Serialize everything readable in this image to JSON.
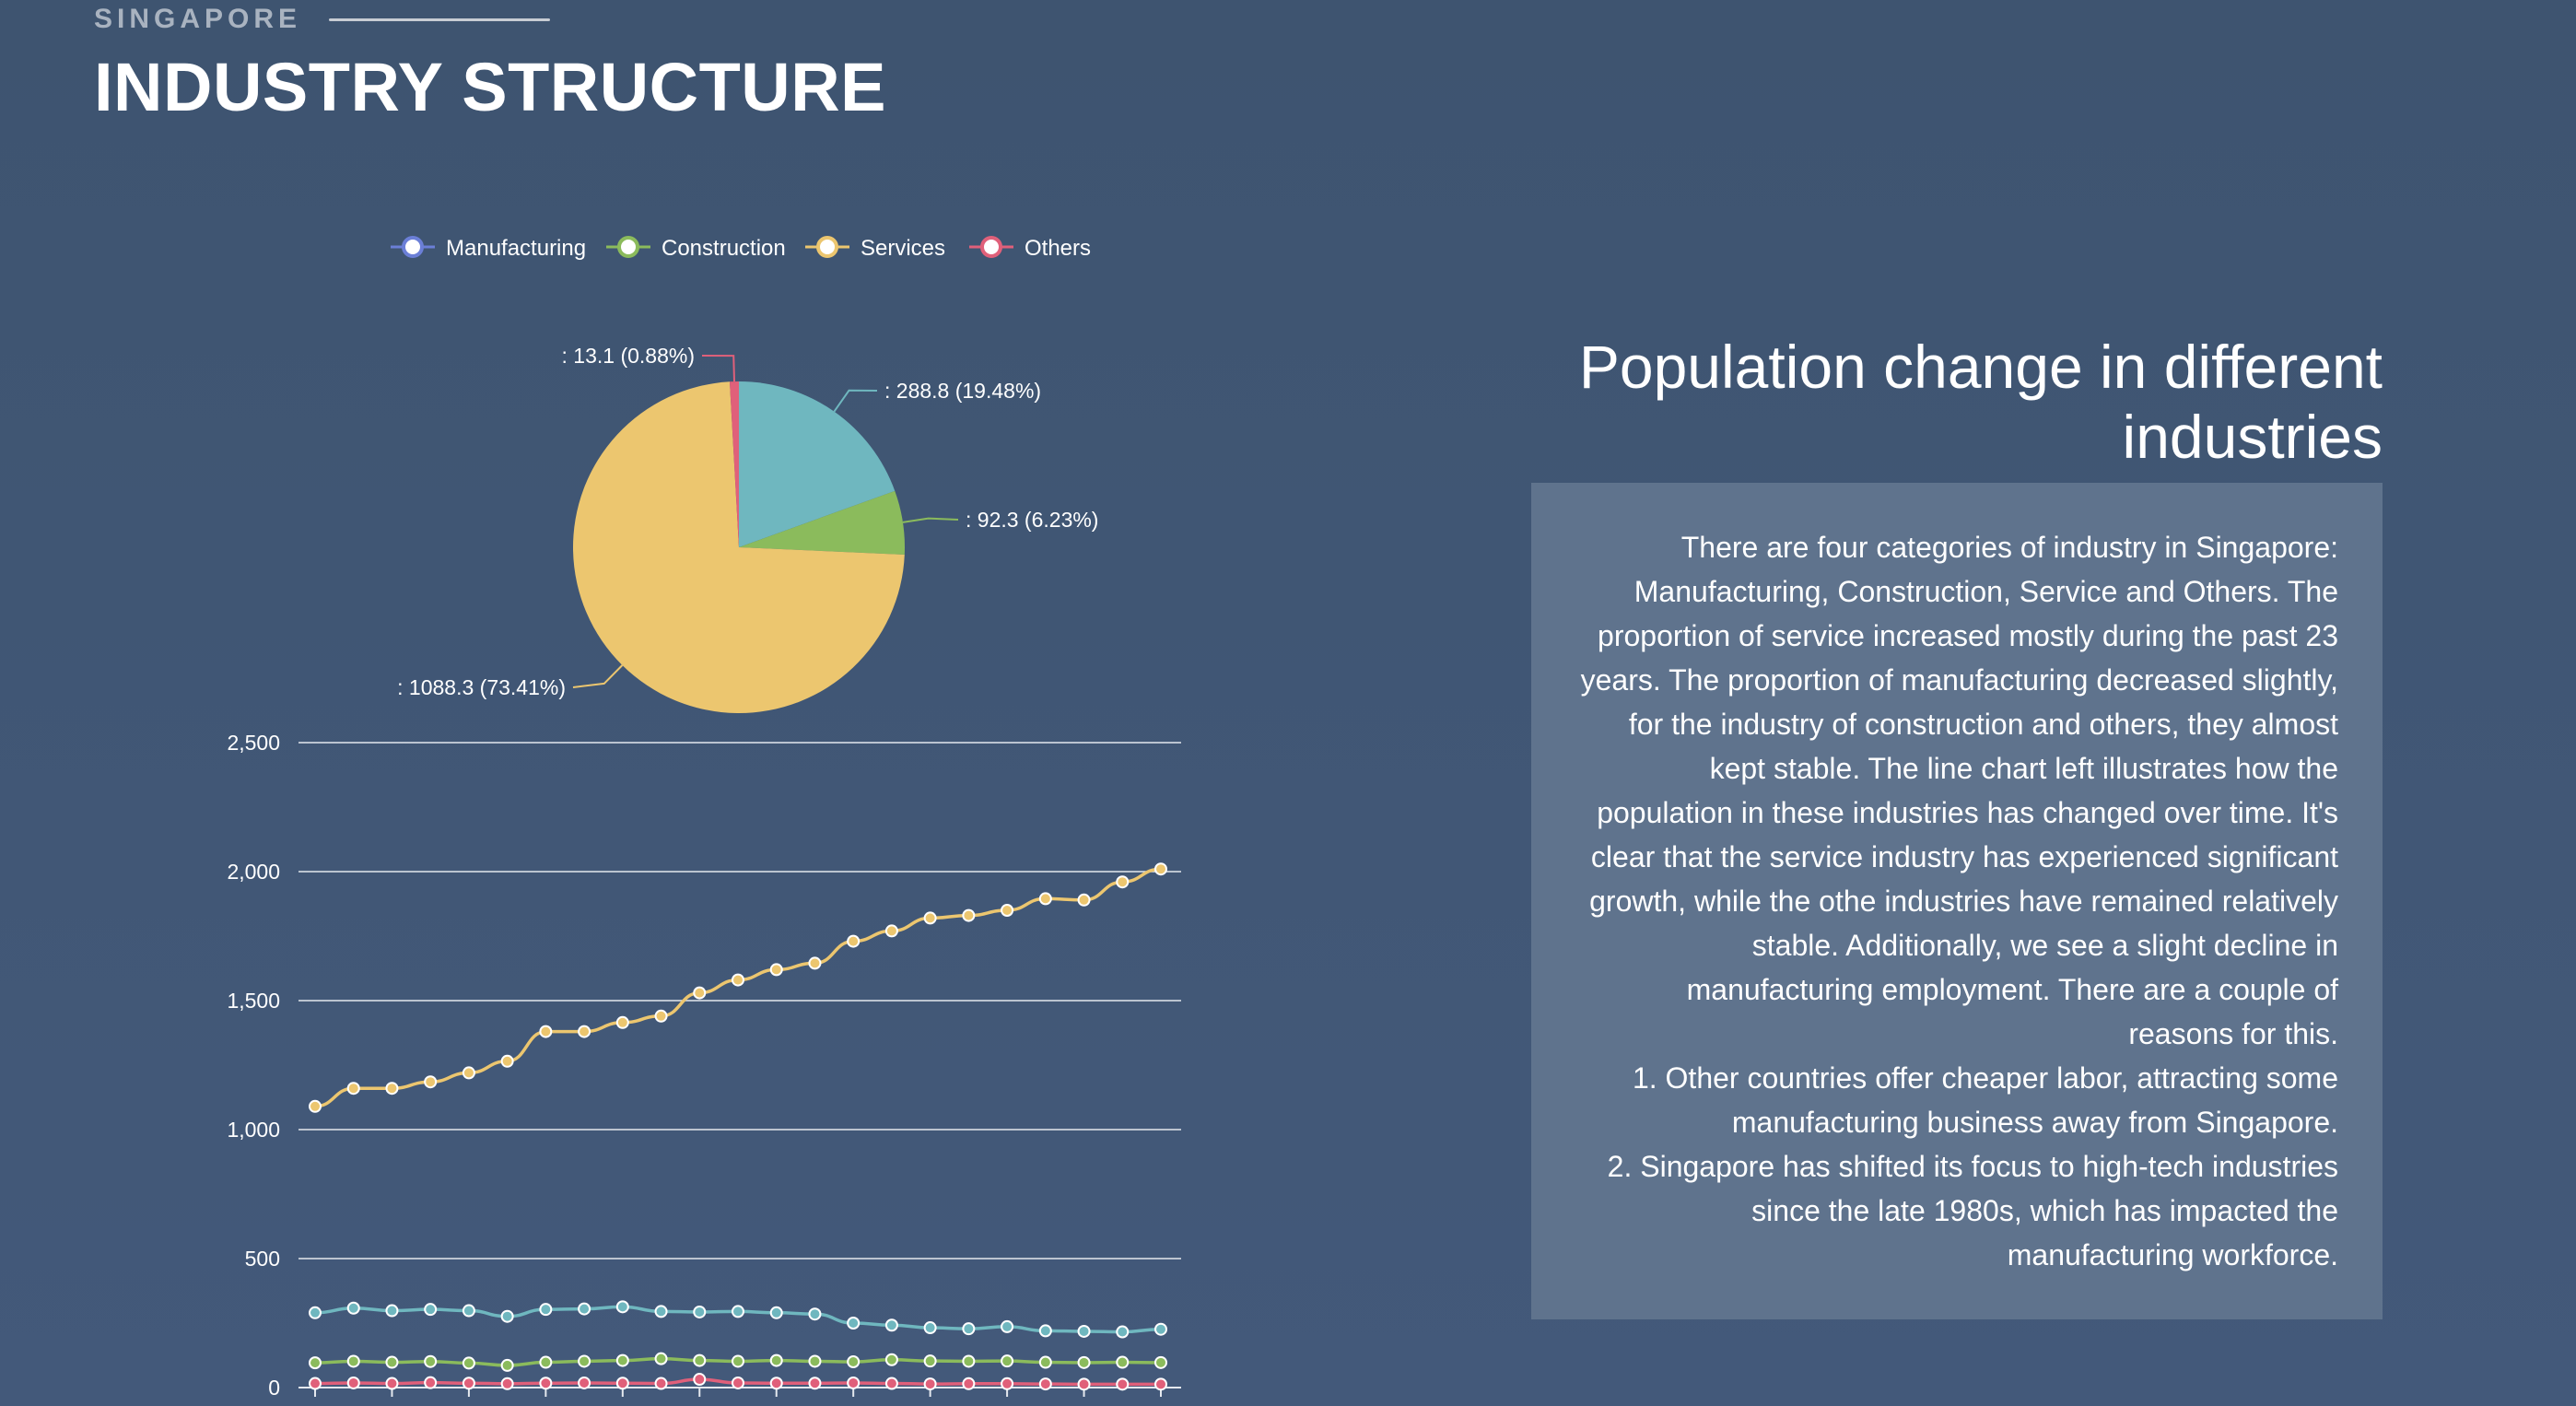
{
  "header": {
    "eyebrow": "SINGAPORE",
    "title": "INDUSTRY STRUCTURE"
  },
  "side_panel": {
    "title": "Population change in different industries",
    "paragraphs": [
      "There are four categories of industry in Singapore: Manufacturing, Construction, Service and Others. The proportion of service increased mostly during the past 23 years. The proportion of manufacturing decreased slightly, for the industry of construction and others, they almost kept stable. The line chart left illustrates how the population in these industries has changed over time. It's clear that the service industry has experienced significant growth, while the othe industries have remained relatively stable. Additionally, we see a slight decline in manufacturing employment. There are a couple of reasons for this.",
      "1. Other countries offer cheaper labor, attracting some manufacturing business away from Singapore.",
      "2. Singapore has shifted its focus to high-tech industries since the late 1980s, which has impacted the manufacturing workforce."
    ]
  },
  "chart_data": [
    {
      "type": "pie",
      "labels": [
        ": 288.8 (19.48%)",
        ": 92.3 (6.23%)",
        ": 1088.3 (73.41%)",
        ": 13.1 (0.88%)"
      ],
      "values": [
        288.8,
        92.3,
        1088.3,
        13.1
      ],
      "percents": [
        19.48,
        6.23,
        73.41,
        0.88
      ],
      "colors": [
        "#6fb7bf",
        "#8bbb5c",
        "#ecc66f",
        "#e0607a"
      ]
    },
    {
      "type": "line",
      "legend": [
        "Manufacturing",
        "Construction",
        "Services",
        "Others"
      ],
      "legend_placement": "top-center",
      "ylim": [
        0,
        2500
      ],
      "yticks": [
        "0",
        "500",
        "1,000",
        "1,500",
        "2,000",
        "2,500"
      ],
      "grid": true,
      "series": [
        {
          "name": "Manufacturing",
          "color": "#6fb7bf",
          "legend_color": "#6b7fd7",
          "values": [
            290,
            308,
            298,
            303,
            298,
            276,
            303,
            305,
            313,
            295,
            293,
            295,
            290,
            285,
            250,
            242,
            232,
            228,
            236,
            220,
            218,
            216,
            226
          ]
        },
        {
          "name": "Construction",
          "color": "#8bbb5c",
          "legend_color": "#8bbb5c",
          "values": [
            96,
            102,
            98,
            101,
            95,
            86,
            98,
            102,
            105,
            112,
            105,
            102,
            105,
            102,
            100,
            108,
            103,
            102,
            103,
            98,
            97,
            98,
            97
          ]
        },
        {
          "name": "Services",
          "color": "#ecc66f",
          "legend_color": "#ecc66f",
          "values": [
            1090,
            1160,
            1160,
            1185,
            1220,
            1265,
            1380,
            1380,
            1415,
            1440,
            1530,
            1580,
            1620,
            1645,
            1730,
            1770,
            1820,
            1830,
            1850,
            1895,
            1890,
            1960,
            2010
          ]
        },
        {
          "name": "Others",
          "color": "#e0607a",
          "legend_color": "#e0607a",
          "values": [
            16,
            18,
            16,
            19,
            17,
            15,
            17,
            18,
            17,
            16,
            32,
            18,
            17,
            17,
            18,
            16,
            14,
            15,
            15,
            14,
            13,
            13,
            13
          ]
        }
      ]
    }
  ]
}
